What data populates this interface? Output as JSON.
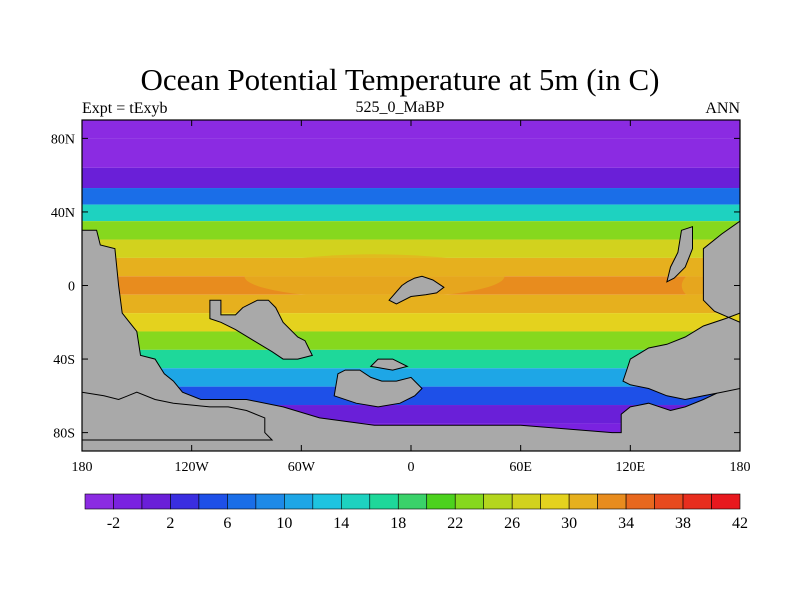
{
  "chart_data": {
    "type": "heatmap",
    "title": "Ocean Potential Temperature at 5m (in C)",
    "subtitle_left": "Expt = tExyb",
    "subtitle_center": "525_0_MaBP",
    "subtitle_right": "ANN",
    "x_ticks": [
      "180",
      "120W",
      "60W",
      "0",
      "60E",
      "120E",
      "180"
    ],
    "y_ticks": [
      "80N",
      "40N",
      "0",
      "40S",
      "80S"
    ],
    "xlim": [
      -180,
      180
    ],
    "ylim": [
      -90,
      90
    ],
    "colorbar_labels": [
      "-2",
      "2",
      "6",
      "10",
      "14",
      "18",
      "22",
      "26",
      "30",
      "34",
      "38",
      "42"
    ],
    "colorbar_colors": [
      "#8b2be2",
      "#7a22e0",
      "#6a1fd8",
      "#3a2ee0",
      "#1e50e8",
      "#1a6ee8",
      "#1e8ae8",
      "#1ea6e6",
      "#1ec4e0",
      "#1ed2c0",
      "#1ed89a",
      "#3ad26a",
      "#4cd21e",
      "#86d81e",
      "#b4d61e",
      "#d2d21e",
      "#e4d21e",
      "#e6b01e",
      "#e88c1e",
      "#e8681e",
      "#e84a1e",
      "#e82e1e",
      "#e8181e"
    ],
    "contour_levels": [
      -4,
      -2,
      0,
      2,
      4,
      6,
      8,
      10,
      12,
      14,
      16,
      18,
      20,
      22,
      24,
      26,
      28,
      30,
      32,
      34,
      36,
      38,
      40,
      42
    ],
    "land_color": "#a9a9a9",
    "field_description_rows": [
      {
        "lat": 90,
        "t": -3
      },
      {
        "lat": 70,
        "t": -2
      },
      {
        "lat": 58,
        "t": 2
      },
      {
        "lat": 48,
        "t": 8
      },
      {
        "lat": 40,
        "t": 16
      },
      {
        "lat": 30,
        "t": 24
      },
      {
        "lat": 20,
        "t": 28
      },
      {
        "lat": 10,
        "t": 32
      },
      {
        "lat": 0,
        "t": 33
      },
      {
        "lat": -10,
        "t": 31
      },
      {
        "lat": -20,
        "t": 29
      },
      {
        "lat": -30,
        "t": 24
      },
      {
        "lat": -40,
        "t": 18
      },
      {
        "lat": -50,
        "t": 12
      },
      {
        "lat": -60,
        "t": 6
      },
      {
        "lat": -70,
        "t": 2
      },
      {
        "lat": -80,
        "t": -1
      }
    ]
  }
}
